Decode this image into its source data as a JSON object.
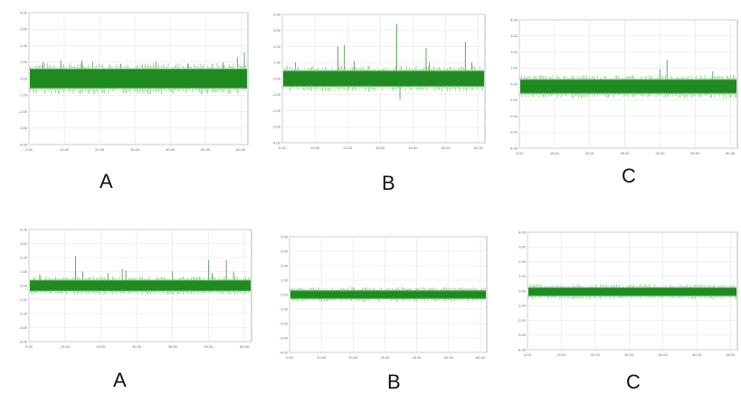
{
  "colors": {
    "signal": "#1f8a1f",
    "spike": "#4aa04a"
  },
  "chart_data": [
    {
      "type": "line",
      "label": "A",
      "row": "top",
      "ylim": [
        -4.0,
        4.0
      ],
      "yticks": [
        "4.00",
        "3.00",
        "2.00",
        "1.00",
        "0.00",
        "-1.00",
        "-2.00",
        "-3.00",
        "-4.00"
      ],
      "xlim": [
        0,
        62
      ],
      "xticks": [
        "0.00",
        "10.00",
        "20.00",
        "30.00",
        "40.00",
        "50.00",
        "60.00"
      ],
      "baseline": [
        -0.6,
        0.6
      ],
      "spikes": [
        [
          4,
          1.0
        ],
        [
          9,
          1.1
        ],
        [
          15,
          1.1
        ],
        [
          18,
          1.0
        ],
        [
          26,
          0.9
        ],
        [
          36,
          1.0
        ],
        [
          45,
          0.9
        ],
        [
          55,
          1.0
        ],
        [
          59,
          1.3
        ],
        [
          61,
          1.6
        ]
      ]
    },
    {
      "type": "line",
      "label": "B",
      "row": "top",
      "ylim": [
        -4.0,
        4.0
      ],
      "yticks": [
        "4.00",
        "3.00",
        "2.00",
        "1.00",
        "0.00",
        "-1.00",
        "-2.00",
        "-3.00",
        "-4.00"
      ],
      "xlim": [
        0,
        62
      ],
      "xticks": [
        "0.00",
        "10.00",
        "20.00",
        "30.00",
        "40.00",
        "50.00",
        "60.00"
      ],
      "baseline": [
        -0.5,
        0.5
      ],
      "spikes": [
        [
          4,
          1.0
        ],
        [
          17,
          2.0
        ],
        [
          19,
          2.1
        ],
        [
          22,
          1.1
        ],
        [
          35,
          3.4
        ],
        [
          36,
          -1.3
        ],
        [
          44,
          1.9
        ],
        [
          45,
          1.0
        ],
        [
          56,
          2.3
        ],
        [
          58,
          1.0
        ]
      ]
    },
    {
      "type": "line",
      "label": "C",
      "row": "top",
      "ylim": [
        -4.0,
        4.0
      ],
      "yticks": [
        "4.00",
        "3.00",
        "2.00",
        "1.00",
        "0.00",
        "-1.00",
        "-2.00",
        "-3.00",
        "-4.00"
      ],
      "xlim": [
        0,
        62
      ],
      "xticks": [
        "0.00",
        "10.00",
        "20.00",
        "30.00",
        "40.00",
        "50.00",
        "60.00"
      ],
      "baseline": [
        -0.6,
        0.3
      ],
      "spikes": [
        [
          40,
          0.9
        ],
        [
          42,
          1.5
        ],
        [
          55,
          0.8
        ]
      ]
    },
    {
      "type": "line",
      "label": "A",
      "row": "bottom",
      "ylim": [
        -4.0,
        4.0
      ],
      "yticks": [
        "4.00",
        "3.00",
        "2.00",
        "1.00",
        "0.00",
        "-1.00",
        "-2.00",
        "-3.00",
        "-4.00"
      ],
      "xlim": [
        0,
        62
      ],
      "xticks": [
        "0.00",
        "10.00",
        "20.00",
        "30.00",
        "40.00",
        "50.00",
        "60.00"
      ],
      "baseline": [
        -0.4,
        0.4
      ],
      "spikes": [
        [
          3,
          0.8
        ],
        [
          13,
          2.1
        ],
        [
          15,
          1.0
        ],
        [
          22,
          0.9
        ],
        [
          26,
          1.2
        ],
        [
          27,
          1.1
        ],
        [
          40,
          1.0
        ],
        [
          50,
          1.8
        ],
        [
          51,
          0.9
        ],
        [
          55,
          1.8
        ],
        [
          57,
          1.0
        ]
      ]
    },
    {
      "type": "line",
      "label": "B",
      "row": "bottom",
      "ylim": [
        -4.0,
        4.0
      ],
      "yticks": [
        "4.00",
        "3.00",
        "2.00",
        "1.00",
        "0.00",
        "-1.00",
        "-2.00",
        "-3.00",
        "-4.00"
      ],
      "xlim": [
        0,
        62
      ],
      "xticks": [
        "0.00",
        "10.00",
        "20.00",
        "30.00",
        "40.00",
        "50.00",
        "60.00"
      ],
      "baseline": [
        -0.3,
        0.3
      ],
      "spikes": [
        [
          20,
          0.5
        ],
        [
          40,
          0.4
        ]
      ]
    },
    {
      "type": "line",
      "label": "C",
      "row": "bottom",
      "ylim": [
        -4.0,
        4.0
      ],
      "yticks": [
        "4.00",
        "3.00",
        "2.00",
        "1.00",
        "0.00",
        "-1.00",
        "-2.00",
        "-3.00",
        "-4.00"
      ],
      "xlim": [
        0,
        62
      ],
      "xticks": [
        "0.00",
        "10.00",
        "20.00",
        "30.00",
        "40.00",
        "50.00",
        "60.00"
      ],
      "baseline": [
        -0.35,
        0.25
      ],
      "spikes": [
        [
          2,
          0.4
        ],
        [
          30,
          0.3
        ]
      ]
    }
  ]
}
